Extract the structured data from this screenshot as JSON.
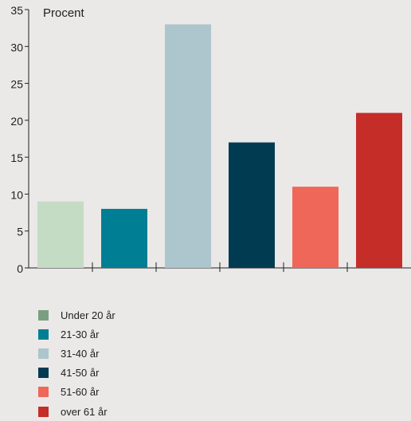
{
  "chart_data": {
    "type": "bar",
    "ylabel": "Procent",
    "ylim": [
      0,
      35
    ],
    "yticks": [
      0,
      5,
      10,
      15,
      20,
      25,
      30,
      35
    ],
    "categories": [
      "Under 20 år",
      "21-30 år",
      "31-40 år",
      "41-50 år",
      "51-60 år",
      "over 61 år"
    ],
    "values": [
      9,
      8,
      33,
      17,
      11,
      21
    ],
    "bar_colors": [
      "#c4dcc4",
      "#007f94",
      "#adc5cc",
      "#003b52",
      "#ee6759",
      "#c52d28"
    ],
    "legend_colors": [
      "#7a9f80",
      "#007f94",
      "#adc5cc",
      "#003b52",
      "#ee6759",
      "#c52d28"
    ],
    "legend_position": "bottom-left",
    "grid": false
  }
}
